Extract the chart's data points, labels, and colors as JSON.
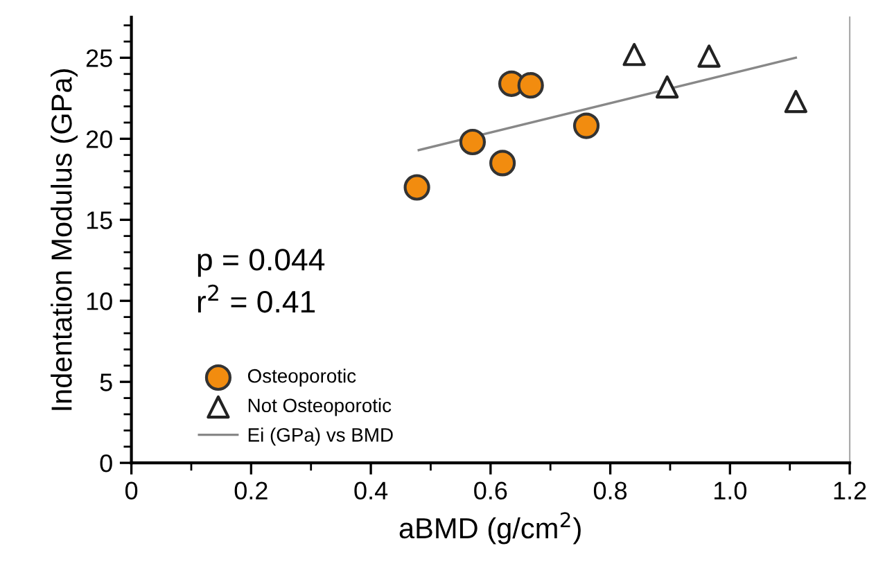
{
  "chart_data": {
    "type": "scatter",
    "xlabel": "aBMD (g/cm$^{2}$)",
    "ylabel": "Indentation Modulus (GPa)",
    "xlim": [
      0,
      1.2
    ],
    "ylim": [
      0,
      27.5
    ],
    "xticks": [
      0,
      0.2,
      0.4,
      0.6,
      0.8,
      {
        "value": 1.0,
        "label": "1.0"
      },
      1.2
    ],
    "yticks": [
      0,
      5,
      10,
      15,
      20,
      25
    ],
    "annotations": [
      "p = 0.044",
      "r$^{2}$ = 0.41"
    ],
    "legend": "bottom left",
    "grid": false,
    "series": [
      {
        "name": "Osteoporotic",
        "marker": "circle",
        "color": "#f28c0f",
        "x": [
          0.477,
          0.57,
          0.62,
          0.635,
          0.667,
          0.76
        ],
        "values": [
          17.0,
          19.8,
          18.5,
          23.4,
          23.3,
          20.8
        ]
      },
      {
        "name": "Not Osteoporotic",
        "marker": "triangle",
        "color": "#ffffff",
        "x": [
          0.84,
          0.895,
          0.965,
          1.11
        ],
        "values": [
          25.2,
          23.2,
          25.1,
          22.3
        ]
      },
      {
        "name": "Ei (GPa) vs BMD",
        "type": "line",
        "marker": "none",
        "line_style": "solid",
        "color": "#888888",
        "x": [
          0.48,
          1.11
        ],
        "values": [
          19.3,
          25.0
        ]
      }
    ]
  }
}
